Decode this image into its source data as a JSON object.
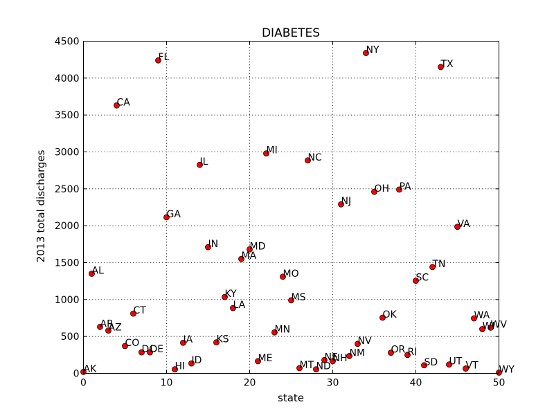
{
  "chart_data": {
    "type": "scatter",
    "title": "DIABETES",
    "xlabel": "state",
    "ylabel": "2013 total discharges",
    "xlim": [
      0,
      50
    ],
    "ylim": [
      0,
      4500
    ],
    "xticks": [
      0,
      10,
      20,
      30,
      40,
      50
    ],
    "yticks": [
      0,
      500,
      1000,
      1500,
      2000,
      2500,
      3000,
      3500,
      4000,
      4500
    ],
    "grid": true,
    "marker_color": "#ff0000",
    "points": [
      {
        "label": "AK",
        "x": 0,
        "y": 20
      },
      {
        "label": "AL",
        "x": 1,
        "y": 1350
      },
      {
        "label": "AR",
        "x": 2,
        "y": 630
      },
      {
        "label": "AZ",
        "x": 3,
        "y": 580
      },
      {
        "label": "CA",
        "x": 4,
        "y": 3630
      },
      {
        "label": "CO",
        "x": 5,
        "y": 370
      },
      {
        "label": "CT",
        "x": 6,
        "y": 810
      },
      {
        "label": "DC",
        "x": 7,
        "y": 285
      },
      {
        "label": "DE",
        "x": 8,
        "y": 285
      },
      {
        "label": "FL",
        "x": 9,
        "y": 4240
      },
      {
        "label": "GA",
        "x": 10,
        "y": 2115
      },
      {
        "label": "HI",
        "x": 11,
        "y": 55
      },
      {
        "label": "IA",
        "x": 12,
        "y": 415
      },
      {
        "label": "ID",
        "x": 13,
        "y": 135
      },
      {
        "label": "IL",
        "x": 14,
        "y": 2825
      },
      {
        "label": "IN",
        "x": 15,
        "y": 1710
      },
      {
        "label": "KS",
        "x": 16,
        "y": 420
      },
      {
        "label": "KY",
        "x": 17,
        "y": 1035
      },
      {
        "label": "LA",
        "x": 18,
        "y": 885
      },
      {
        "label": "MA",
        "x": 19,
        "y": 1550
      },
      {
        "label": "MD",
        "x": 20,
        "y": 1680
      },
      {
        "label": "ME",
        "x": 21,
        "y": 165
      },
      {
        "label": "MI",
        "x": 22,
        "y": 2980
      },
      {
        "label": "MN",
        "x": 23,
        "y": 555
      },
      {
        "label": "MO",
        "x": 24,
        "y": 1310
      },
      {
        "label": "MS",
        "x": 25,
        "y": 990
      },
      {
        "label": "MT",
        "x": 26,
        "y": 70
      },
      {
        "label": "NC",
        "x": 27,
        "y": 2885
      },
      {
        "label": "ND",
        "x": 28,
        "y": 55
      },
      {
        "label": "NE",
        "x": 29,
        "y": 180
      },
      {
        "label": "NH",
        "x": 30,
        "y": 165
      },
      {
        "label": "NJ",
        "x": 31,
        "y": 2290
      },
      {
        "label": "NM",
        "x": 32,
        "y": 235
      },
      {
        "label": "NV",
        "x": 33,
        "y": 400
      },
      {
        "label": "NY",
        "x": 34,
        "y": 4340
      },
      {
        "label": "OH",
        "x": 35,
        "y": 2460
      },
      {
        "label": "OK",
        "x": 36,
        "y": 755
      },
      {
        "label": "OR",
        "x": 37,
        "y": 280
      },
      {
        "label": "PA",
        "x": 38,
        "y": 2490
      },
      {
        "label": "RI",
        "x": 39,
        "y": 250
      },
      {
        "label": "SC",
        "x": 40,
        "y": 1255
      },
      {
        "label": "SD",
        "x": 41,
        "y": 110
      },
      {
        "label": "TN",
        "x": 42,
        "y": 1440
      },
      {
        "label": "TX",
        "x": 43,
        "y": 4150
      },
      {
        "label": "UT",
        "x": 44,
        "y": 120
      },
      {
        "label": "VA",
        "x": 45,
        "y": 1985
      },
      {
        "label": "VT",
        "x": 46,
        "y": 65
      },
      {
        "label": "WA",
        "x": 47,
        "y": 745
      },
      {
        "label": "WI",
        "x": 48,
        "y": 600
      },
      {
        "label": "WV",
        "x": 49,
        "y": 620
      },
      {
        "label": "WY",
        "x": 50,
        "y": 10
      }
    ]
  }
}
